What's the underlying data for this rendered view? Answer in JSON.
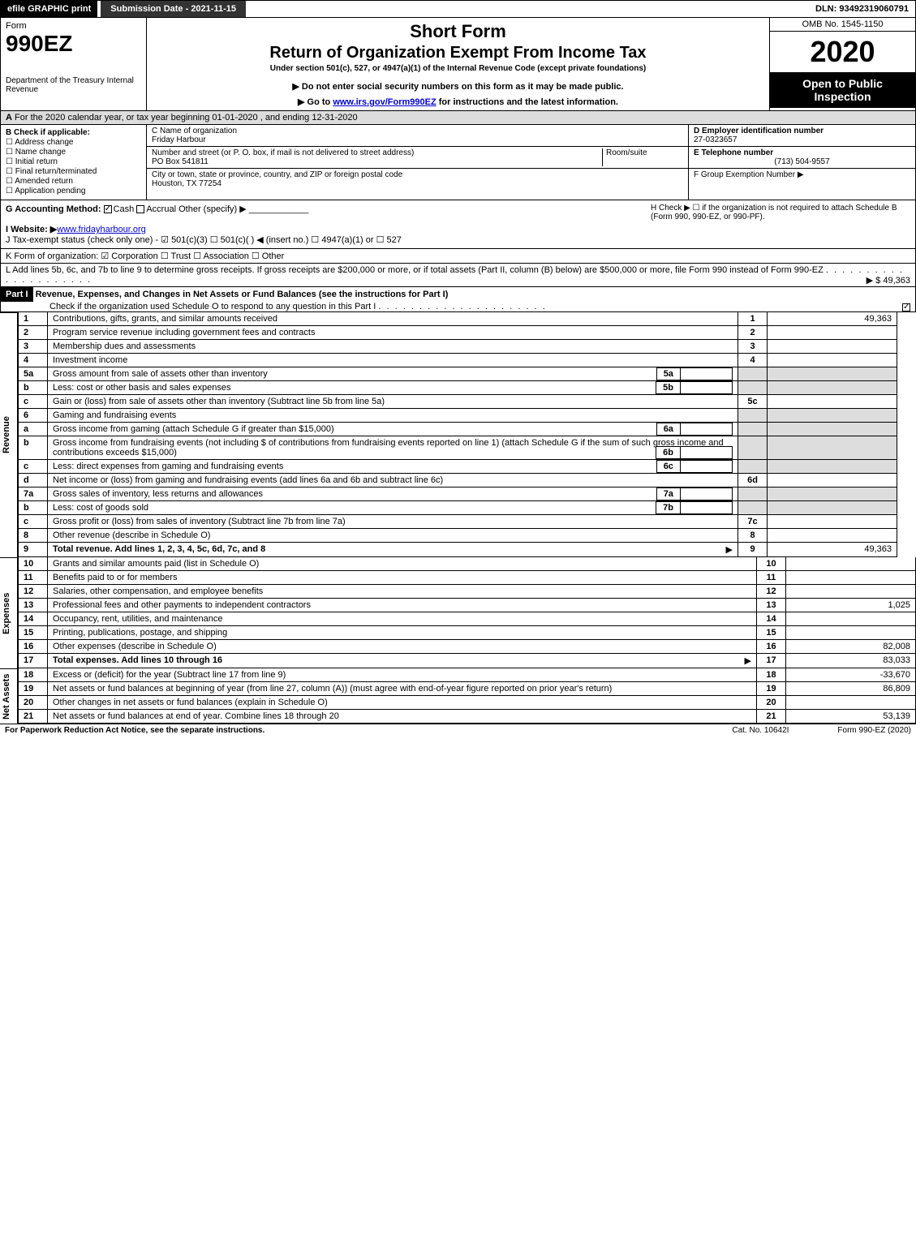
{
  "topbar": {
    "efile": "efile GRAPHIC print",
    "subdate_label": "Submission Date - 2021-11-15",
    "dln": "DLN: 93492319060791"
  },
  "header": {
    "form_word": "Form",
    "form_number": "990EZ",
    "dept": "Department of the Treasury Internal Revenue",
    "short_form": "Short Form",
    "title": "Return of Organization Exempt From Income Tax",
    "under": "Under section 501(c), 527, or 4947(a)(1) of the Internal Revenue Code (except private foundations)",
    "note": "▶ Do not enter social security numbers on this form as it may be made public.",
    "goto_prefix": "▶ Go to ",
    "goto_link": "www.irs.gov/Form990EZ",
    "goto_suffix": " for instructions and the latest information.",
    "omb": "OMB No. 1545-1150",
    "year": "2020",
    "open": "Open to Public Inspection"
  },
  "line_a": "For the 2020 calendar year, or tax year beginning 01-01-2020 , and ending 12-31-2020",
  "section_b": {
    "label": "B Check if applicable:",
    "items": [
      "Address change",
      "Name change",
      "Initial return",
      "Final return/terminated",
      "Amended return",
      "Application pending"
    ]
  },
  "section_c": {
    "name_label": "C Name of organization",
    "name": "Friday Harbour",
    "addr_label": "Number and street (or P. O. box, if mail is not delivered to street address)",
    "room_label": "Room/suite",
    "addr": "PO Box 541811",
    "city_label": "City or town, state or province, country, and ZIP or foreign postal code",
    "city": "Houston, TX  77254"
  },
  "section_d": {
    "ein_label": "D Employer identification number",
    "ein": "27-0323657",
    "phone_label": "E Telephone number",
    "phone": "(713) 504-9557",
    "group_label": "F Group Exemption Number  ▶"
  },
  "line_g": {
    "label": "G Accounting Method:",
    "cash": "Cash",
    "accrual": "Accrual",
    "other": "Other (specify) ▶"
  },
  "line_h": "H  Check ▶ ☐ if the organization is not required to attach Schedule B (Form 990, 990-EZ, or 990-PF).",
  "line_i": {
    "label": "I Website: ▶",
    "value": "www.fridayharbour.org"
  },
  "line_j": "J Tax-exempt status (check only one) - ☑ 501(c)(3) ☐ 501(c)( ) ◀ (insert no.) ☐ 4947(a)(1) or ☐ 527",
  "line_k": "K Form of organization: ☑ Corporation  ☐ Trust  ☐ Association  ☐ Other",
  "line_l": {
    "text": "L Add lines 5b, 6c, and 7b to line 9 to determine gross receipts. If gross receipts are $200,000 or more, or if total assets (Part II, column (B) below) are $500,000 or more, file Form 990 instead of Form 990-EZ",
    "amount": "▶ $ 49,363"
  },
  "part1": {
    "label": "Part I",
    "title": "Revenue, Expenses, and Changes in Net Assets or Fund Balances (see the instructions for Part I)",
    "check_note": "Check if the organization used Schedule O to respond to any question in this Part I"
  },
  "revenue": [
    {
      "n": "1",
      "desc": "Contributions, gifts, grants, and similar amounts received",
      "ln": "1",
      "amt": "49,363"
    },
    {
      "n": "2",
      "desc": "Program service revenue including government fees and contracts",
      "ln": "2",
      "amt": ""
    },
    {
      "n": "3",
      "desc": "Membership dues and assessments",
      "ln": "3",
      "amt": ""
    },
    {
      "n": "4",
      "desc": "Investment income",
      "ln": "4",
      "amt": ""
    },
    {
      "n": "5a",
      "desc": "Gross amount from sale of assets other than inventory",
      "sub": "5a",
      "subamt": ""
    },
    {
      "n": "b",
      "desc": "Less: cost or other basis and sales expenses",
      "sub": "5b",
      "subamt": ""
    },
    {
      "n": "c",
      "desc": "Gain or (loss) from sale of assets other than inventory (Subtract line 5b from line 5a)",
      "ln": "5c",
      "amt": ""
    },
    {
      "n": "6",
      "desc": "Gaming and fundraising events"
    },
    {
      "n": "a",
      "desc": "Gross income from gaming (attach Schedule G if greater than $15,000)",
      "sub": "6a",
      "subamt": ""
    },
    {
      "n": "b",
      "desc": "Gross income from fundraising events (not including $                     of contributions from fundraising events reported on line 1) (attach Schedule G if the sum of such gross income and contributions exceeds $15,000)",
      "sub": "6b",
      "subamt": ""
    },
    {
      "n": "c",
      "desc": "Less: direct expenses from gaming and fundraising events",
      "sub": "6c",
      "subamt": ""
    },
    {
      "n": "d",
      "desc": "Net income or (loss) from gaming and fundraising events (add lines 6a and 6b and subtract line 6c)",
      "ln": "6d",
      "amt": ""
    },
    {
      "n": "7a",
      "desc": "Gross sales of inventory, less returns and allowances",
      "sub": "7a",
      "subamt": ""
    },
    {
      "n": "b",
      "desc": "Less: cost of goods sold",
      "sub": "7b",
      "subamt": ""
    },
    {
      "n": "c",
      "desc": "Gross profit or (loss) from sales of inventory (Subtract line 7b from line 7a)",
      "ln": "7c",
      "amt": ""
    },
    {
      "n": "8",
      "desc": "Other revenue (describe in Schedule O)",
      "ln": "8",
      "amt": ""
    },
    {
      "n": "9",
      "desc": "Total revenue. Add lines 1, 2, 3, 4, 5c, 6d, 7c, and 8",
      "ln": "9",
      "amt": "49,363",
      "arrow": "▶",
      "bold": true
    }
  ],
  "expenses": [
    {
      "n": "10",
      "desc": "Grants and similar amounts paid (list in Schedule O)",
      "ln": "10",
      "amt": ""
    },
    {
      "n": "11",
      "desc": "Benefits paid to or for members",
      "ln": "11",
      "amt": ""
    },
    {
      "n": "12",
      "desc": "Salaries, other compensation, and employee benefits",
      "ln": "12",
      "amt": ""
    },
    {
      "n": "13",
      "desc": "Professional fees and other payments to independent contractors",
      "ln": "13",
      "amt": "1,025"
    },
    {
      "n": "14",
      "desc": "Occupancy, rent, utilities, and maintenance",
      "ln": "14",
      "amt": ""
    },
    {
      "n": "15",
      "desc": "Printing, publications, postage, and shipping",
      "ln": "15",
      "amt": ""
    },
    {
      "n": "16",
      "desc": "Other expenses (describe in Schedule O)",
      "ln": "16",
      "amt": "82,008"
    },
    {
      "n": "17",
      "desc": "Total expenses. Add lines 10 through 16",
      "ln": "17",
      "amt": "83,033",
      "arrow": "▶",
      "bold": true
    }
  ],
  "netassets": [
    {
      "n": "18",
      "desc": "Excess or (deficit) for the year (Subtract line 17 from line 9)",
      "ln": "18",
      "amt": "-33,670"
    },
    {
      "n": "19",
      "desc": "Net assets or fund balances at beginning of year (from line 27, column (A)) (must agree with end-of-year figure reported on prior year's return)",
      "ln": "19",
      "amt": "86,809"
    },
    {
      "n": "20",
      "desc": "Other changes in net assets or fund balances (explain in Schedule O)",
      "ln": "20",
      "amt": ""
    },
    {
      "n": "21",
      "desc": "Net assets or fund balances at end of year. Combine lines 18 through 20",
      "ln": "21",
      "amt": "53,139"
    }
  ],
  "section_labels": {
    "revenue": "Revenue",
    "expenses": "Expenses",
    "netassets": "Net Assets"
  },
  "footer": {
    "left": "For Paperwork Reduction Act Notice, see the separate instructions.",
    "mid": "Cat. No. 10642I",
    "right": "Form 990-EZ (2020)"
  }
}
